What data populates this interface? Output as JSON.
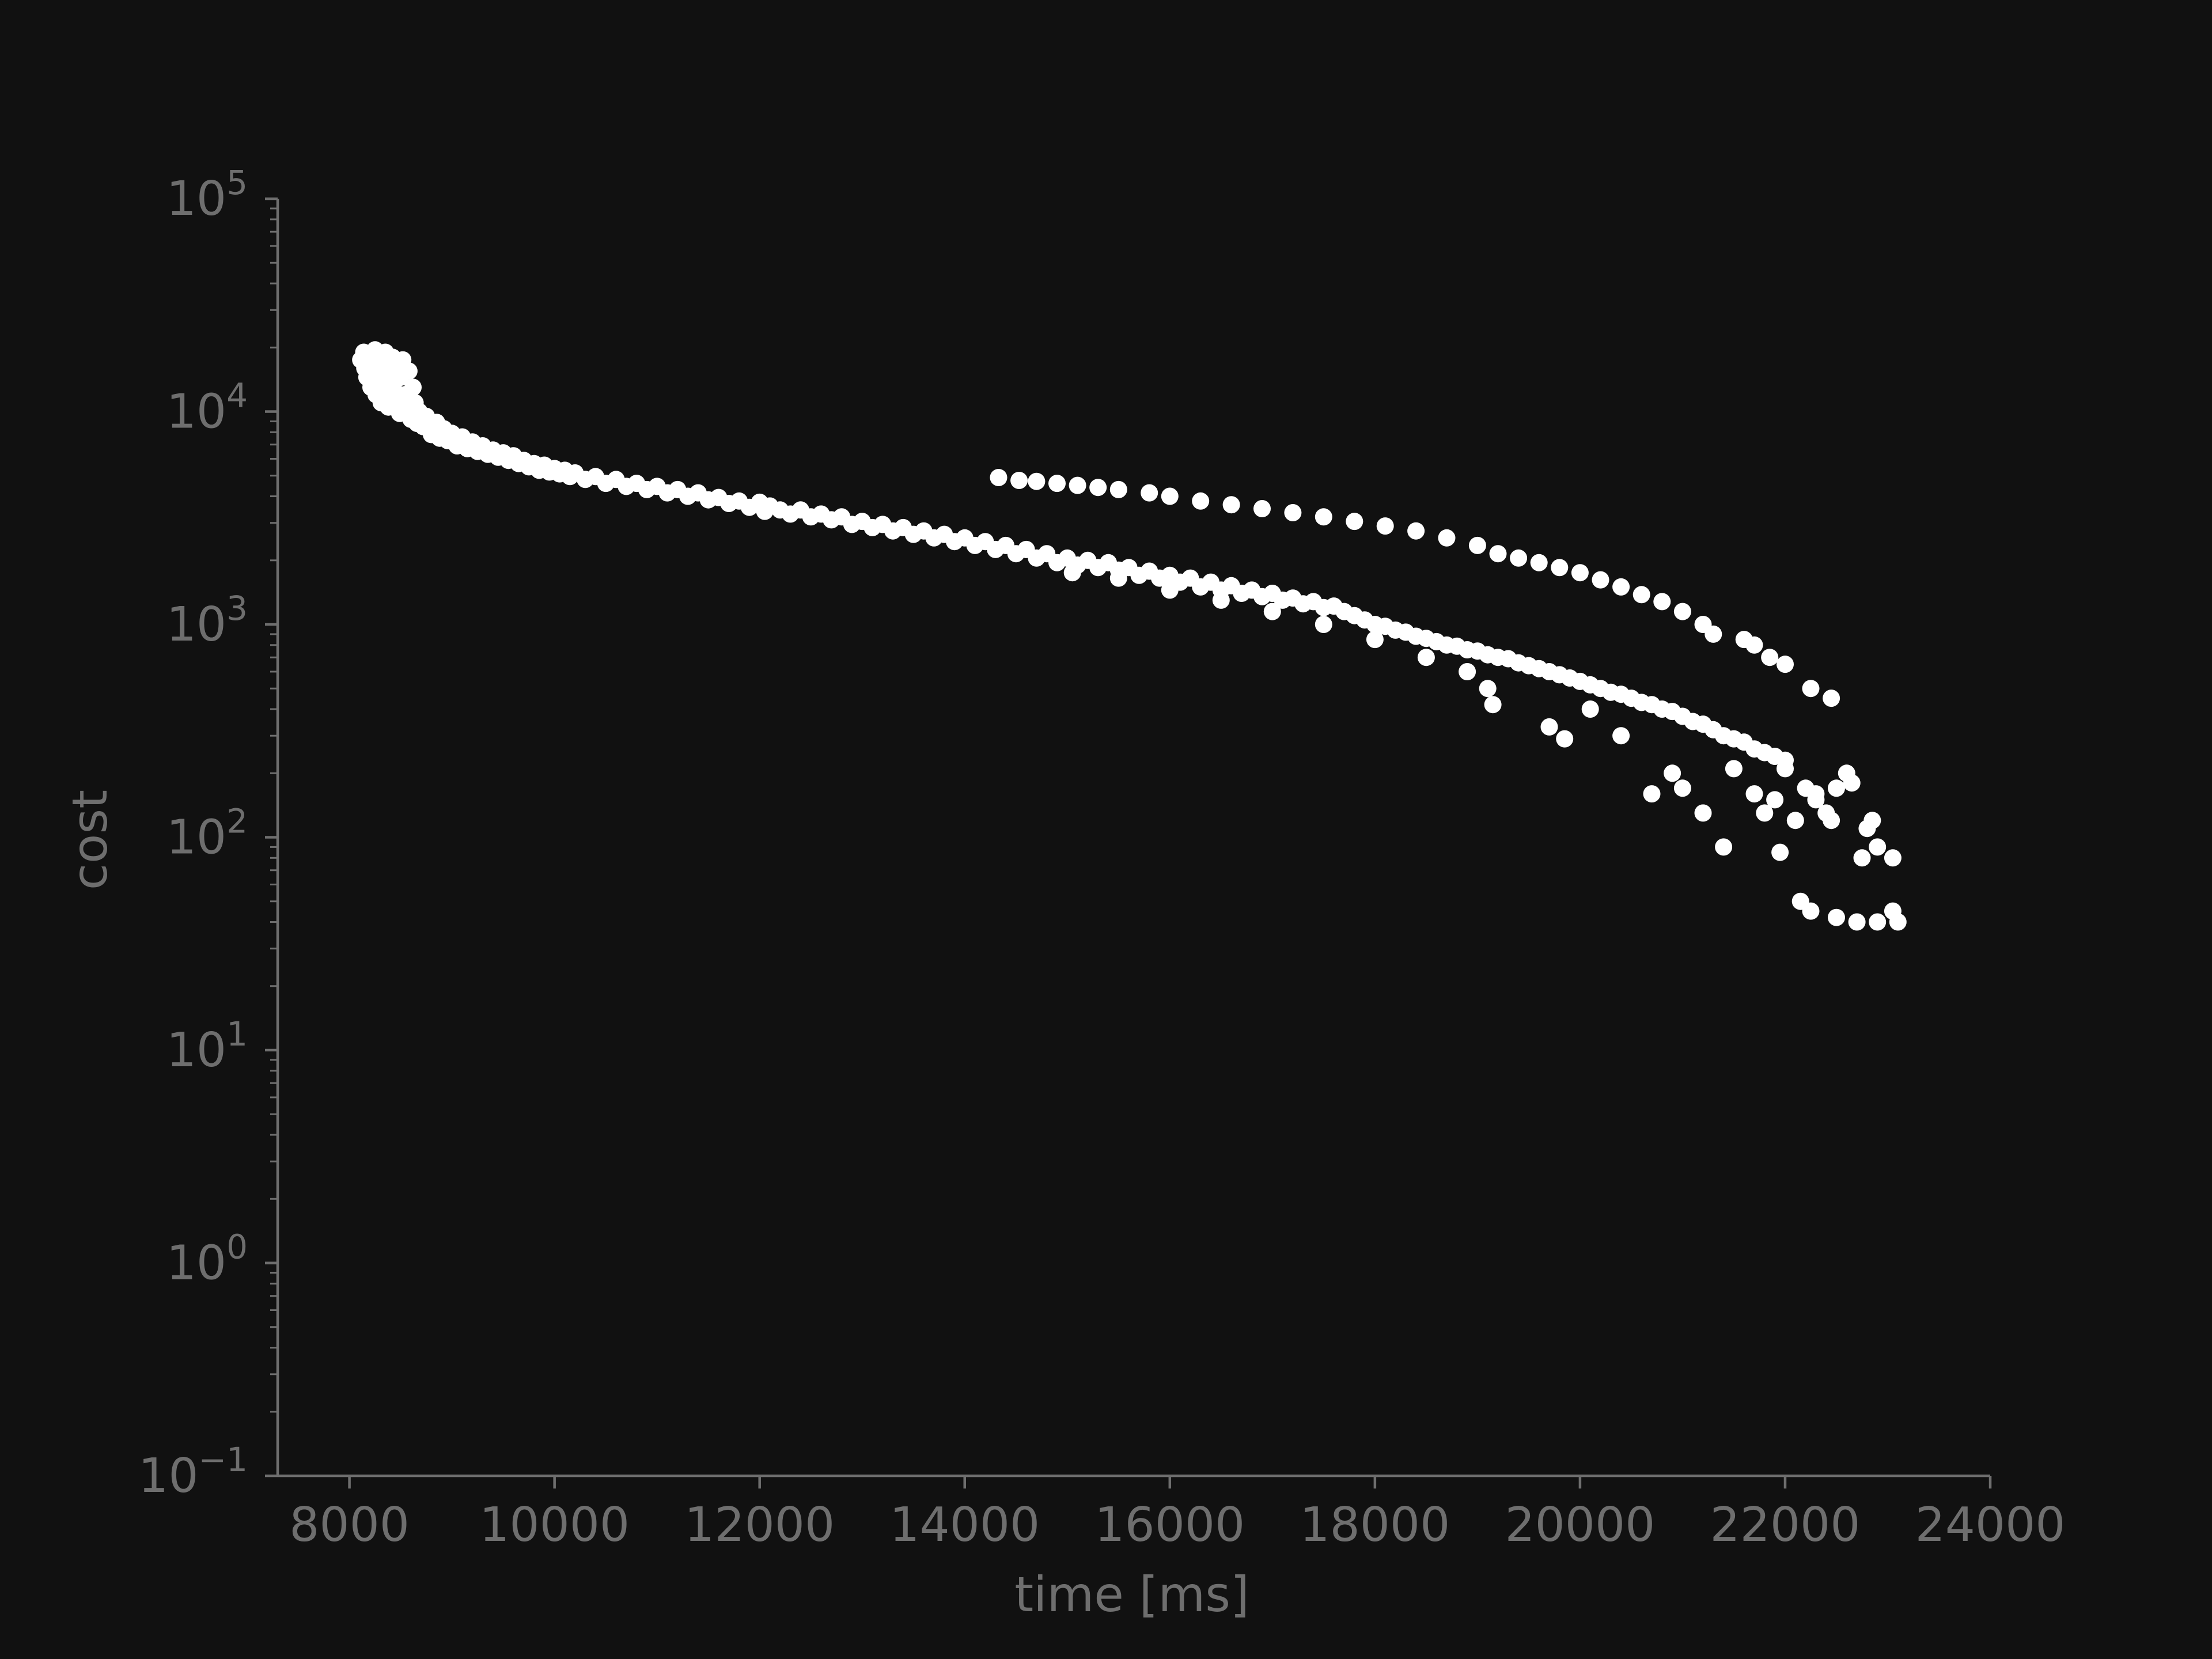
{
  "chart_data": {
    "type": "scatter",
    "title": "",
    "xlabel": "time [ms]",
    "ylabel": "cost",
    "xlim": [
      7300,
      24000
    ],
    "ylim": [
      0.1,
      100000
    ],
    "yscale": "log",
    "grid": false,
    "legend": "none",
    "colors": {
      "background": "#111111",
      "axis": "#6e6e6e",
      "point": "#ffffff"
    },
    "x_ticks": [
      {
        "value": 8000,
        "label": "8000"
      },
      {
        "value": 10000,
        "label": "10000"
      },
      {
        "value": 12000,
        "label": "12000"
      },
      {
        "value": 14000,
        "label": "14000"
      },
      {
        "value": 16000,
        "label": "16000"
      },
      {
        "value": 18000,
        "label": "18000"
      },
      {
        "value": 20000,
        "label": "20000"
      },
      {
        "value": 22000,
        "label": "22000"
      },
      {
        "value": 24000,
        "label": "24000"
      }
    ],
    "y_ticks": [
      {
        "value": 100000,
        "base": "10",
        "exp": "5"
      },
      {
        "value": 10000,
        "base": "10",
        "exp": "4"
      },
      {
        "value": 1000,
        "base": "10",
        "exp": "3"
      },
      {
        "value": 100,
        "base": "10",
        "exp": "2"
      },
      {
        "value": 10,
        "base": "10",
        "exp": "1"
      },
      {
        "value": 1,
        "base": "10",
        "exp": "0"
      },
      {
        "value": 0.1,
        "base": "10",
        "exp": "−1"
      }
    ],
    "series": [
      {
        "points": [
          [
            8110,
            17500
          ],
          [
            8140,
            19000
          ],
          [
            8150,
            16000
          ],
          [
            8170,
            14500
          ],
          [
            8200,
            18500
          ],
          [
            8210,
            13000
          ],
          [
            8230,
            15500
          ],
          [
            8250,
            19500
          ],
          [
            8260,
            12000
          ],
          [
            8280,
            17000
          ],
          [
            8300,
            14000
          ],
          [
            8310,
            11000
          ],
          [
            8330,
            16500
          ],
          [
            8350,
            19000
          ],
          [
            8360,
            12500
          ],
          [
            8380,
            10500
          ],
          [
            8400,
            15000
          ],
          [
            8420,
            18000
          ],
          [
            8430,
            13500
          ],
          [
            8450,
            11500
          ],
          [
            8470,
            16000
          ],
          [
            8490,
            9800
          ],
          [
            8500,
            14500
          ],
          [
            8520,
            17500
          ],
          [
            8540,
            12000
          ],
          [
            8560,
            10500
          ],
          [
            8580,
            15500
          ],
          [
            8600,
            9200
          ],
          [
            8620,
            13000
          ],
          [
            8640,
            11000
          ],
          [
            8660,
            8800
          ],
          [
            8680,
            10000
          ],
          [
            8700,
            9000
          ],
          [
            8720,
            8500
          ],
          [
            8750,
            9500
          ],
          [
            8780,
            8200
          ],
          [
            8800,
            7800
          ],
          [
            8850,
            8900
          ],
          [
            8880,
            7500
          ],
          [
            8920,
            8300
          ],
          [
            8960,
            7300
          ],
          [
            9000,
            7900
          ],
          [
            9050,
            6900
          ],
          [
            9100,
            7600
          ],
          [
            9150,
            6700
          ],
          [
            9200,
            7200
          ],
          [
            9250,
            6500
          ],
          [
            9300,
            6900
          ],
          [
            9350,
            6300
          ],
          [
            9400,
            6600
          ],
          [
            9450,
            6100
          ],
          [
            9500,
            6400
          ],
          [
            9550,
            5900
          ],
          [
            9600,
            6200
          ],
          [
            9650,
            5700
          ],
          [
            9700,
            5900
          ],
          [
            9750,
            5500
          ],
          [
            9800,
            5700
          ],
          [
            9850,
            5300
          ],
          [
            9900,
            5600
          ],
          [
            9950,
            5200
          ],
          [
            10000,
            5400
          ],
          [
            10050,
            5100
          ],
          [
            10100,
            5300
          ],
          [
            10150,
            4950
          ],
          [
            10200,
            5150
          ],
          [
            10300,
            4800
          ],
          [
            10400,
            4950
          ],
          [
            10500,
            4600
          ],
          [
            10600,
            4800
          ],
          [
            10700,
            4450
          ],
          [
            10800,
            4600
          ],
          [
            10900,
            4300
          ],
          [
            11000,
            4450
          ],
          [
            11100,
            4150
          ],
          [
            11200,
            4300
          ],
          [
            11300,
            4000
          ],
          [
            11400,
            4150
          ],
          [
            11500,
            3850
          ],
          [
            11600,
            3950
          ],
          [
            11700,
            3700
          ],
          [
            11800,
            3800
          ],
          [
            11900,
            3550
          ],
          [
            12000,
            3750
          ],
          [
            12050,
            3400
          ],
          [
            12100,
            3600
          ],
          [
            12200,
            3450
          ],
          [
            12300,
            3300
          ],
          [
            12400,
            3450
          ],
          [
            12500,
            3200
          ],
          [
            12600,
            3300
          ],
          [
            12700,
            3100
          ],
          [
            12800,
            3200
          ],
          [
            12900,
            2950
          ],
          [
            13000,
            3050
          ],
          [
            13100,
            2850
          ],
          [
            13200,
            2950
          ],
          [
            13300,
            2750
          ],
          [
            13400,
            2850
          ],
          [
            13500,
            2650
          ],
          [
            13600,
            2750
          ],
          [
            13700,
            2550
          ],
          [
            13800,
            2650
          ],
          [
            13900,
            2450
          ],
          [
            14000,
            2550
          ],
          [
            14100,
            2350
          ],
          [
            14200,
            2450
          ],
          [
            14300,
            2250
          ],
          [
            14400,
            2350
          ],
          [
            14500,
            2150
          ],
          [
            14600,
            2250
          ],
          [
            14700,
            2050
          ],
          [
            14800,
            2150
          ],
          [
            14900,
            1950
          ],
          [
            15000,
            2050
          ],
          [
            15100,
            1900
          ],
          [
            15200,
            2000
          ],
          [
            15300,
            1850
          ],
          [
            15400,
            1950
          ],
          [
            15500,
            1800
          ],
          [
            15600,
            1850
          ],
          [
            15700,
            1700
          ],
          [
            15800,
            1780
          ],
          [
            15900,
            1650
          ],
          [
            16000,
            1700
          ],
          [
            16100,
            1580
          ],
          [
            16200,
            1650
          ],
          [
            16300,
            1500
          ],
          [
            16400,
            1580
          ],
          [
            16500,
            1450
          ],
          [
            16600,
            1520
          ],
          [
            16700,
            1400
          ],
          [
            16800,
            1450
          ],
          [
            16900,
            1350
          ],
          [
            17000,
            1400
          ],
          [
            17100,
            1300
          ],
          [
            17200,
            1330
          ],
          [
            17300,
            1250
          ],
          [
            17400,
            1280
          ],
          [
            17500,
            1200
          ],
          [
            17600,
            1220
          ],
          [
            17700,
            1150
          ],
          [
            17800,
            1100
          ],
          [
            17900,
            1050
          ],
          [
            18000,
            1000
          ],
          [
            18100,
            980
          ],
          [
            18200,
            940
          ],
          [
            18300,
            920
          ],
          [
            18400,
            880
          ],
          [
            18500,
            860
          ],
          [
            18600,
            830
          ],
          [
            18700,
            800
          ],
          [
            18800,
            790
          ],
          [
            18900,
            760
          ],
          [
            19000,
            750
          ],
          [
            19100,
            720
          ],
          [
            19200,
            700
          ],
          [
            19300,
            690
          ],
          [
            19400,
            660
          ],
          [
            19500,
            640
          ],
          [
            19600,
            620
          ],
          [
            19700,
            600
          ],
          [
            19800,
            580
          ],
          [
            19900,
            560
          ],
          [
            20000,
            540
          ],
          [
            20100,
            520
          ],
          [
            20200,
            500
          ],
          [
            20300,
            480
          ],
          [
            20400,
            470
          ],
          [
            20500,
            450
          ],
          [
            20600,
            430
          ],
          [
            20700,
            420
          ],
          [
            20800,
            400
          ],
          [
            20900,
            390
          ],
          [
            21000,
            370
          ],
          [
            21100,
            350
          ],
          [
            21200,
            340
          ],
          [
            21300,
            320
          ],
          [
            21400,
            300
          ],
          [
            21500,
            290
          ],
          [
            21600,
            280
          ],
          [
            21700,
            260
          ],
          [
            21800,
            250
          ],
          [
            21900,
            240
          ],
          [
            22000,
            230
          ],
          [
            14330,
            4900
          ],
          [
            14530,
            4750
          ],
          [
            14700,
            4700
          ],
          [
            14900,
            4600
          ],
          [
            15100,
            4500
          ],
          [
            15300,
            4400
          ],
          [
            15500,
            4300
          ],
          [
            15800,
            4150
          ],
          [
            16000,
            4000
          ],
          [
            16300,
            3800
          ],
          [
            16600,
            3650
          ],
          [
            16900,
            3500
          ],
          [
            17200,
            3350
          ],
          [
            17500,
            3200
          ],
          [
            17800,
            3050
          ],
          [
            18100,
            2900
          ],
          [
            18400,
            2750
          ],
          [
            18700,
            2550
          ],
          [
            19000,
            2350
          ],
          [
            19200,
            2150
          ],
          [
            19400,
            2050
          ],
          [
            19600,
            1950
          ],
          [
            19800,
            1850
          ],
          [
            20000,
            1750
          ],
          [
            20200,
            1620
          ],
          [
            20400,
            1500
          ],
          [
            20600,
            1380
          ],
          [
            20800,
            1280
          ],
          [
            21000,
            1150
          ],
          [
            21200,
            1000
          ],
          [
            21300,
            900
          ],
          [
            21600,
            850
          ],
          [
            21700,
            800
          ],
          [
            21850,
            700
          ],
          [
            22000,
            650
          ],
          [
            22250,
            500
          ],
          [
            22450,
            450
          ],
          [
            15050,
            1750
          ],
          [
            15500,
            1650
          ],
          [
            16000,
            1450
          ],
          [
            16500,
            1300
          ],
          [
            17000,
            1150
          ],
          [
            17500,
            1000
          ],
          [
            18000,
            850
          ],
          [
            18500,
            700
          ],
          [
            18900,
            600
          ],
          [
            19100,
            500
          ],
          [
            19150,
            420
          ],
          [
            19700,
            330
          ],
          [
            19850,
            290
          ],
          [
            20100,
            400
          ],
          [
            20400,
            300
          ],
          [
            20700,
            160
          ],
          [
            20900,
            200
          ],
          [
            21000,
            170
          ],
          [
            21200,
            130
          ],
          [
            21400,
            90
          ],
          [
            21500,
            210
          ],
          [
            21800,
            130
          ],
          [
            21950,
            85
          ],
          [
            22100,
            120
          ],
          [
            22300,
            160
          ],
          [
            22450,
            120
          ],
          [
            22600,
            200
          ],
          [
            22800,
            110
          ],
          [
            22900,
            90
          ],
          [
            23050,
            80
          ],
          [
            22150,
            50
          ],
          [
            22250,
            45
          ],
          [
            22500,
            42
          ],
          [
            22700,
            40
          ],
          [
            22900,
            40
          ],
          [
            23050,
            45
          ],
          [
            23100,
            40
          ],
          [
            21700,
            160
          ],
          [
            21900,
            150
          ],
          [
            22000,
            210
          ],
          [
            22200,
            170
          ],
          [
            22300,
            150
          ],
          [
            22400,
            130
          ],
          [
            22500,
            170
          ],
          [
            22650,
            180
          ],
          [
            22750,
            80
          ],
          [
            22850,
            120
          ]
        ]
      }
    ]
  }
}
